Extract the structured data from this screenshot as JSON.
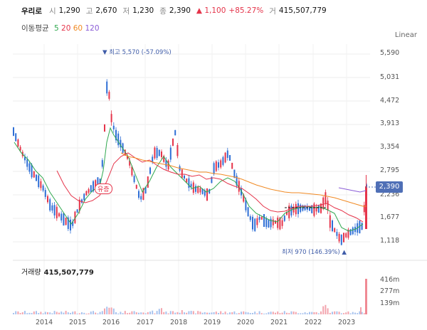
{
  "header": {
    "name": "우리로",
    "open_label": "시",
    "open": "1,290",
    "high_label": "고",
    "high": "2,670",
    "low_label": "저",
    "low": "1,230",
    "close_label": "종",
    "close": "2,390",
    "change": "▲ 1,100",
    "change_pct": "+85.27%",
    "volume_label": "거",
    "volume": "415,507,779"
  },
  "ma": {
    "label": "이동평균",
    "p1": "5",
    "p2": "20",
    "p3": "60",
    "p4": "120",
    "colors": {
      "5": "#2fa84f",
      "20": "#e5344a",
      "60": "#f08a24",
      "120": "#8a5cd6"
    }
  },
  "scale_label": "Linear",
  "y_axis": [
    "5,590",
    "5,031",
    "4,472",
    "3,913",
    "3,354",
    "2,795",
    "2,236",
    "1,677",
    "1,118"
  ],
  "current_price": "2,390",
  "annotations": {
    "high": "▼ 최고 5,570 (-57.09%)",
    "low": "최저 970 (146.39%) ▲",
    "tag": "유증"
  },
  "volume": {
    "title": "거래량",
    "value": "415,507,779",
    "axis": [
      "416m",
      "277m",
      "139m"
    ]
  },
  "x_axis": [
    "2014",
    "2015",
    "2016",
    "2017",
    "2018",
    "2019",
    "2020",
    "2021",
    "2022",
    "2023"
  ],
  "colors": {
    "up": "#e5344a",
    "down": "#2f6fd6",
    "accent": "#4f6fb6"
  }
}
